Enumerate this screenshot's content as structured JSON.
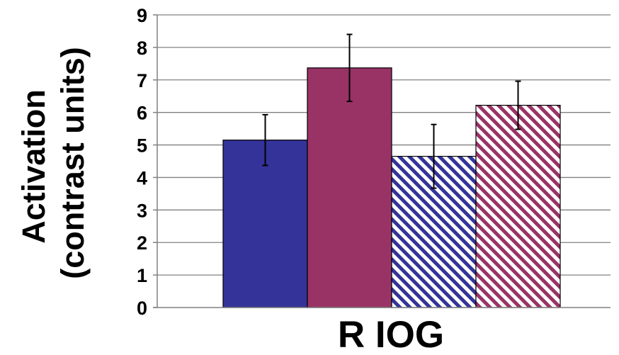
{
  "chart_data": {
    "type": "bar",
    "categories": [
      "R IOG"
    ],
    "series": [
      {
        "values": [
          5.15
        ],
        "error": [
          0.78
        ],
        "color": "#333399",
        "pattern": "solid"
      },
      {
        "values": [
          7.37
        ],
        "error": [
          1.03
        ],
        "color": "#993366",
        "pattern": "solid"
      },
      {
        "values": [
          4.65
        ],
        "error": [
          0.98
        ],
        "color": "#333399",
        "pattern": "diagonal-stripes"
      },
      {
        "values": [
          6.22
        ],
        "error": [
          0.74
        ],
        "color": "#993366",
        "pattern": "diagonal-stripes"
      }
    ],
    "ylabel_line1": "Activation",
    "ylabel_line2": "(contrast units)",
    "xlabel": "R IOG",
    "ylim": [
      0,
      9
    ],
    "yticks": [
      "0",
      "1",
      "2",
      "3",
      "4",
      "5",
      "6",
      "7",
      "8",
      "9"
    ],
    "grid": true,
    "legend": "none"
  }
}
